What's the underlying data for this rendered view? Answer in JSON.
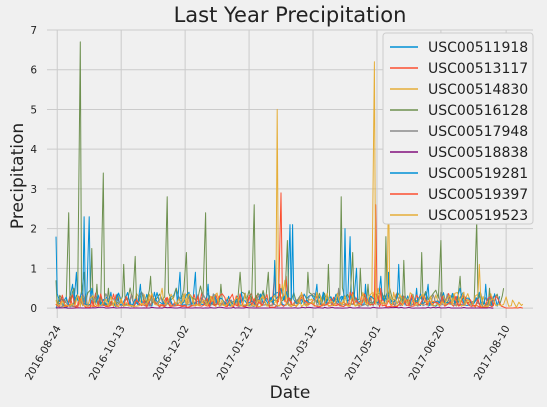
{
  "chart_data": {
    "type": "line",
    "title": "Last Year Precipitation",
    "xlabel": "Date",
    "ylabel": "Precipitation",
    "xlim": [
      "2016-08-16",
      "2017-08-31"
    ],
    "ylim": [
      -0.25,
      7
    ],
    "x_ticks": [
      "2016-08-24",
      "2016-10-13",
      "2016-12-02",
      "2017-01-21",
      "2017-03-12",
      "2017-05-01",
      "2017-06-20",
      "2017-08-10"
    ],
    "y_ticks": [
      "0",
      "1",
      "2",
      "3",
      "4",
      "5",
      "6",
      "7"
    ],
    "grid": true,
    "legend_position": "top-right",
    "series": [
      {
        "name": "USC00511918",
        "color": "#008fd5",
        "points": [
          [
            "2016-08-23",
            0.0
          ],
          [
            "2016-09-05",
            0.6
          ],
          [
            "2016-09-18",
            2.3
          ],
          [
            "2016-10-02",
            0.3
          ],
          [
            "2016-10-20",
            0.2
          ],
          [
            "2016-11-08",
            0.4
          ],
          [
            "2016-11-25",
            0.5
          ],
          [
            "2016-12-10",
            0.9
          ],
          [
            "2017-01-05",
            0.3
          ],
          [
            "2017-02-01",
            0.4
          ],
          [
            "2017-02-22",
            2.1
          ],
          [
            "2017-03-20",
            0.4
          ],
          [
            "2017-04-10",
            1.8
          ],
          [
            "2017-04-22",
            0.6
          ],
          [
            "2017-05-10",
            0.9
          ],
          [
            "2017-06-01",
            0.5
          ],
          [
            "2017-06-30",
            0.3
          ],
          [
            "2017-07-20",
            0.4
          ],
          [
            "2017-07-31",
            0.1
          ]
        ]
      },
      {
        "name": "USC00513117",
        "color": "#fc4f30",
        "points": [
          [
            "2016-08-23",
            0.1
          ],
          [
            "2016-09-10",
            0.3
          ],
          [
            "2016-09-30",
            0.2
          ],
          [
            "2016-10-25",
            0.3
          ],
          [
            "2016-11-20",
            0.2
          ],
          [
            "2016-12-15",
            0.4
          ],
          [
            "2017-01-12",
            0.2
          ],
          [
            "2017-02-10",
            0.9
          ],
          [
            "2017-02-15",
            2.9
          ],
          [
            "2017-02-19",
            0.8
          ],
          [
            "2017-03-15",
            0.3
          ],
          [
            "2017-04-12",
            0.4
          ],
          [
            "2017-05-05",
            0.2
          ],
          [
            "2017-06-05",
            0.3
          ],
          [
            "2017-07-01",
            0.2
          ],
          [
            "2017-07-31",
            0.1
          ]
        ]
      },
      {
        "name": "USC00514830",
        "color": "#e5ae38",
        "points": [
          [
            "2016-08-23",
            0.1
          ],
          [
            "2016-09-15",
            0.2
          ],
          [
            "2016-10-10",
            0.3
          ],
          [
            "2016-11-05",
            0.2
          ],
          [
            "2016-12-01",
            0.2
          ],
          [
            "2016-12-28",
            0.3
          ],
          [
            "2017-01-25",
            0.2
          ],
          [
            "2017-02-12",
            5.0
          ],
          [
            "2017-02-16",
            0.6
          ],
          [
            "2017-03-10",
            0.2
          ],
          [
            "2017-04-05",
            0.3
          ],
          [
            "2017-04-28",
            0.4
          ],
          [
            "2017-05-20",
            0.3
          ],
          [
            "2017-06-15",
            0.2
          ],
          [
            "2017-07-10",
            0.3
          ],
          [
            "2017-07-31",
            0.1
          ]
        ]
      },
      {
        "name": "USC00516128",
        "color": "#6d904f",
        "points": [
          [
            "2016-08-23",
            0.7
          ],
          [
            "2016-08-28",
            0.2
          ],
          [
            "2016-09-02",
            2.4
          ],
          [
            "2016-09-06",
            0.5
          ],
          [
            "2016-09-11",
            6.7
          ],
          [
            "2016-09-14",
            0.9
          ],
          [
            "2016-09-20",
            1.5
          ],
          [
            "2016-09-24",
            0.6
          ],
          [
            "2016-09-29",
            3.4
          ],
          [
            "2016-10-03",
            0.5
          ],
          [
            "2016-10-15",
            1.1
          ],
          [
            "2016-10-24",
            1.3
          ],
          [
            "2016-11-05",
            0.8
          ],
          [
            "2016-11-18",
            2.8
          ],
          [
            "2016-12-03",
            1.4
          ],
          [
            "2016-12-18",
            2.4
          ],
          [
            "2016-12-30",
            0.6
          ],
          [
            "2017-01-14",
            0.9
          ],
          [
            "2017-01-25",
            2.6
          ],
          [
            "2017-02-05",
            0.9
          ],
          [
            "2017-02-20",
            1.7
          ],
          [
            "2017-03-08",
            0.9
          ],
          [
            "2017-03-24",
            1.1
          ],
          [
            "2017-04-03",
            2.8
          ],
          [
            "2017-04-12",
            1.4
          ],
          [
            "2017-04-18",
            1.0
          ],
          [
            "2017-04-24",
            0.6
          ],
          [
            "2017-05-08",
            1.8
          ],
          [
            "2017-05-22",
            1.2
          ],
          [
            "2017-06-05",
            1.4
          ],
          [
            "2017-06-20",
            1.7
          ],
          [
            "2017-07-05",
            0.8
          ],
          [
            "2017-07-18",
            2.2
          ],
          [
            "2017-07-28",
            0.5
          ],
          [
            "2017-08-02",
            0.3
          ],
          [
            "2017-08-08",
            0.5
          ]
        ]
      },
      {
        "name": "USC00517948",
        "color": "#8b8b8b",
        "points": [
          [
            "2016-08-23",
            0.1
          ],
          [
            "2016-09-20",
            0.3
          ],
          [
            "2016-10-25",
            0.2
          ],
          [
            "2016-12-05",
            0.4
          ],
          [
            "2017-01-10",
            0.2
          ],
          [
            "2017-02-20",
            0.4
          ],
          [
            "2017-04-01",
            0.5
          ],
          [
            "2017-05-10",
            0.3
          ],
          [
            "2017-06-20",
            0.4
          ],
          [
            "2017-07-31",
            0.3
          ]
        ]
      },
      {
        "name": "USC00518838",
        "color": "#810f7c",
        "points": [
          [
            "2016-08-23",
            0.0
          ],
          [
            "2016-10-20",
            0.0
          ],
          [
            "2017-01-10",
            0.0
          ],
          [
            "2017-03-20",
            0.0
          ],
          [
            "2017-05-30",
            0.0
          ],
          [
            "2017-07-31",
            0.0
          ]
        ]
      },
      {
        "name": "USC00519281",
        "color": "#008fd5",
        "points": [
          [
            "2016-08-23",
            1.8
          ],
          [
            "2016-08-28",
            0.3
          ],
          [
            "2016-09-08",
            0.9
          ],
          [
            "2016-09-14",
            2.3
          ],
          [
            "2016-09-20",
            0.5
          ],
          [
            "2016-10-05",
            0.4
          ],
          [
            "2016-10-28",
            0.6
          ],
          [
            "2016-11-28",
            0.9
          ],
          [
            "2016-12-20",
            0.6
          ],
          [
            "2017-01-15",
            0.4
          ],
          [
            "2017-02-10",
            1.2
          ],
          [
            "2017-02-24",
            2.1
          ],
          [
            "2017-03-15",
            0.6
          ],
          [
            "2017-04-06",
            2.0
          ],
          [
            "2017-04-15",
            1.0
          ],
          [
            "2017-05-04",
            0.8
          ],
          [
            "2017-05-18",
            1.1
          ],
          [
            "2017-06-10",
            0.6
          ],
          [
            "2017-07-05",
            0.5
          ],
          [
            "2017-07-25",
            0.6
          ],
          [
            "2017-08-05",
            0.3
          ]
        ]
      },
      {
        "name": "USC00519397",
        "color": "#fc4f30",
        "points": [
          [
            "2016-08-23",
            0.1
          ],
          [
            "2016-09-20",
            0.2
          ],
          [
            "2016-10-30",
            0.1
          ],
          [
            "2016-12-12",
            0.3
          ],
          [
            "2017-01-20",
            0.1
          ],
          [
            "2017-02-14",
            0.6
          ],
          [
            "2017-03-05",
            0.2
          ],
          [
            "2017-04-10",
            0.4
          ],
          [
            "2017-04-30",
            2.6
          ],
          [
            "2017-05-04",
            0.5
          ],
          [
            "2017-05-25",
            0.2
          ],
          [
            "2017-06-30",
            0.2
          ],
          [
            "2017-07-20",
            0.1
          ],
          [
            "2017-08-10",
            0.0
          ],
          [
            "2017-08-23",
            0.0
          ]
        ]
      },
      {
        "name": "USC00519523",
        "color": "#e5ae38",
        "points": [
          [
            "2016-08-23",
            0.2
          ],
          [
            "2016-09-12",
            0.3
          ],
          [
            "2016-10-08",
            0.2
          ],
          [
            "2016-11-14",
            0.5
          ],
          [
            "2016-12-22",
            0.3
          ],
          [
            "2017-01-28",
            0.2
          ],
          [
            "2017-02-18",
            0.7
          ],
          [
            "2017-03-18",
            0.3
          ],
          [
            "2017-04-20",
            0.4
          ],
          [
            "2017-04-29",
            6.2
          ],
          [
            "2017-05-02",
            0.5
          ],
          [
            "2017-05-10",
            3.3
          ],
          [
            "2017-05-14",
            0.4
          ],
          [
            "2017-06-12",
            0.3
          ],
          [
            "2017-07-08",
            0.4
          ],
          [
            "2017-07-20",
            1.1
          ],
          [
            "2017-08-15",
            0.2
          ],
          [
            "2017-08-23",
            0.1
          ]
        ]
      }
    ]
  }
}
